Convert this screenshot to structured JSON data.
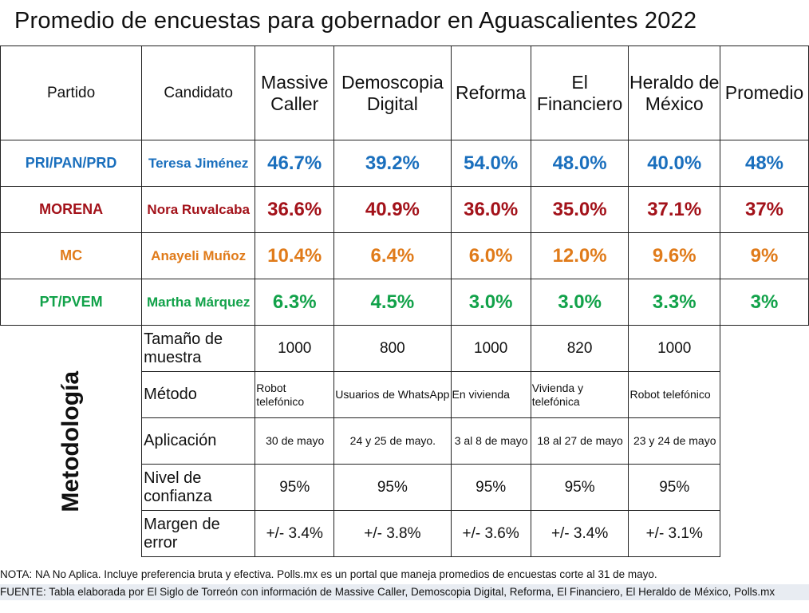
{
  "title": "Promedio de encuestas para gobernador en Aguascalientes 2022",
  "colors": {
    "PRI/PAN/PRD": "#1a6fbd",
    "MORENA": "#a3121a",
    "MC": "#e07b1a",
    "PT/PVEM": "#12a24a"
  },
  "chart_data": {
    "type": "table",
    "title": "Promedio de encuestas para gobernador en Aguascalientes 2022",
    "headers": [
      "Partido",
      "Candidato",
      "Massive Caller",
      "Demoscopia Digital",
      "Reforma",
      "El Financiero",
      "Heraldo de México",
      "Promedio"
    ],
    "rows": [
      {
        "party": "PRI/PAN/PRD",
        "candidate": "Teresa Jiménez",
        "values": [
          "46.7%",
          "39.2%",
          "54.0%",
          "48.0%",
          "40.0%",
          "48%"
        ]
      },
      {
        "party": "MORENA",
        "candidate": "Nora Ruvalcaba",
        "values": [
          "36.6%",
          "40.9%",
          "36.0%",
          "35.0%",
          "37.1%",
          "37%"
        ]
      },
      {
        "party": "MC",
        "candidate": "Anayeli Muñoz",
        "values": [
          "10.4%",
          "6.4%",
          "6.0%",
          "12.0%",
          "9.6%",
          "9%"
        ]
      },
      {
        "party": "PT/PVEM",
        "candidate": "Martha Márquez",
        "values": [
          "6.3%",
          "4.5%",
          "3.0%",
          "3.0%",
          "3.3%",
          "3%"
        ]
      }
    ],
    "methodology_label": "Metodología",
    "methodology": [
      {
        "label": "Tamaño de muestra",
        "values": [
          "1000",
          "800",
          "1000",
          "820",
          "1000"
        ]
      },
      {
        "label": "Método",
        "values": [
          "Robot telefónico",
          "Usuarios de WhatsApp",
          "En vivienda",
          "Vivienda y telefónica",
          "Robot telefónico"
        ]
      },
      {
        "label": "Aplicación",
        "values": [
          "30 de mayo",
          "24 y 25 de mayo.",
          "3 al 8 de mayo",
          "18 al 27 de mayo",
          "23 y 24 de mayo"
        ]
      },
      {
        "label": "Nivel de confianza",
        "values": [
          "95%",
          "95%",
          "95%",
          "95%",
          "95%"
        ]
      },
      {
        "label": "Margen de error",
        "values": [
          "+/- 3.4%",
          "+/- 3.8%",
          "+/- 3.6%",
          "+/- 3.4%",
          "+/- 3.1%"
        ]
      }
    ]
  },
  "notes": {
    "nota": "NOTA: NA No Aplica. Incluye preferencia bruta y efectiva. Polls.mx es un portal que maneja promedios de encuestas corte al 31 de mayo.",
    "fuente": "FUENTE: Tabla elaborada por El Siglo de Torreón con información de Massive Caller, Demoscopia Digital, Reforma, El Financiero, El Heraldo de México, Polls.mx"
  }
}
